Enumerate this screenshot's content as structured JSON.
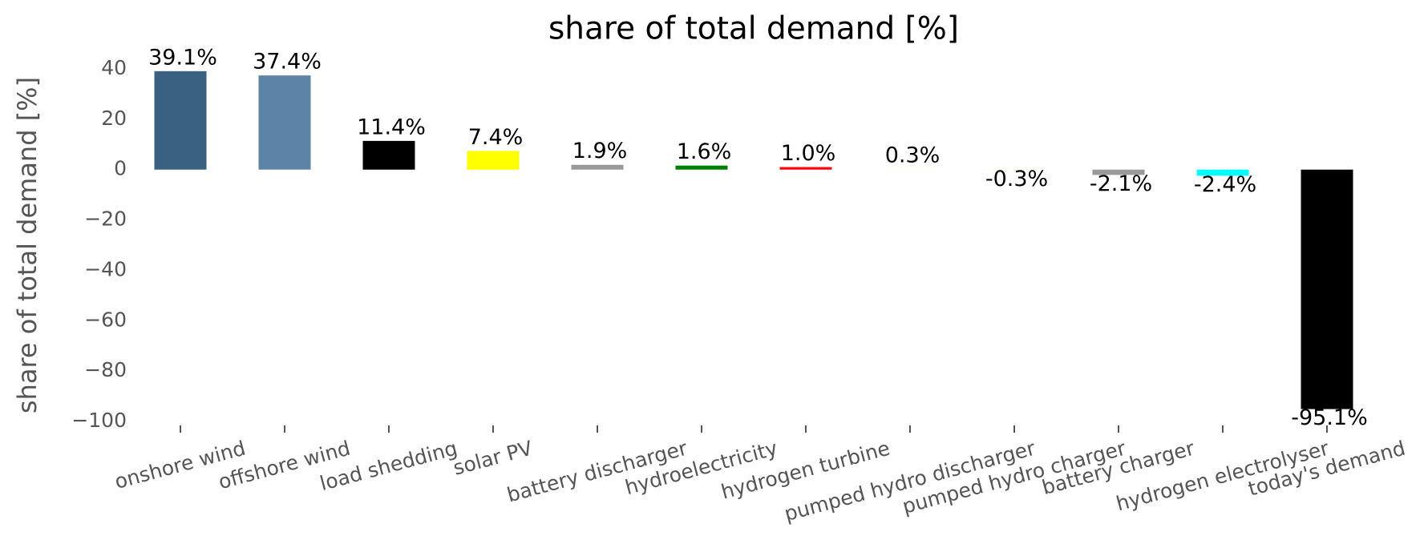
{
  "chart_data": {
    "type": "bar",
    "title": "share of total demand [%]",
    "y_label": "share of total demand [%]",
    "categories": [
      "onshore wind",
      "offshore wind",
      "load shedding",
      "solar PV",
      "battery discharger",
      "hydroelectricity",
      "hydrogen turbine",
      "pumped hydro discharger",
      "pumped hydro charger",
      "battery charger",
      "hydrogen electrolyser",
      "today's demand"
    ],
    "values": [
      39.1,
      37.4,
      11.4,
      7.4,
      1.9,
      1.6,
      1.0,
      0.3,
      -0.3,
      -2.1,
      -2.4,
      -95.1
    ],
    "value_labels": [
      "39.1%",
      "37.4%",
      "11.4%",
      "7.4%",
      "1.9%",
      "1.6%",
      "1.0%",
      "0.3%",
      "-0.3%",
      "-2.1%",
      "-2.4%",
      "-95.1%"
    ],
    "colors": [
      "#3b6182",
      "#5b84a6",
      "#000000",
      "#ffff00",
      "#999999",
      "#008000",
      "#ff0000",
      "#ffffe0",
      "#ffffe0",
      "#999999",
      "#00ffff",
      "#000000"
    ],
    "ylim": [
      -100,
      40
    ],
    "yticks": [
      {
        "value": -100,
        "label": "−100"
      },
      {
        "value": -80,
        "label": "−80"
      },
      {
        "value": -60,
        "label": "−60"
      },
      {
        "value": -40,
        "label": "−40"
      },
      {
        "value": -20,
        "label": "−20"
      },
      0,
      20,
      40
    ],
    "grid": false
  }
}
